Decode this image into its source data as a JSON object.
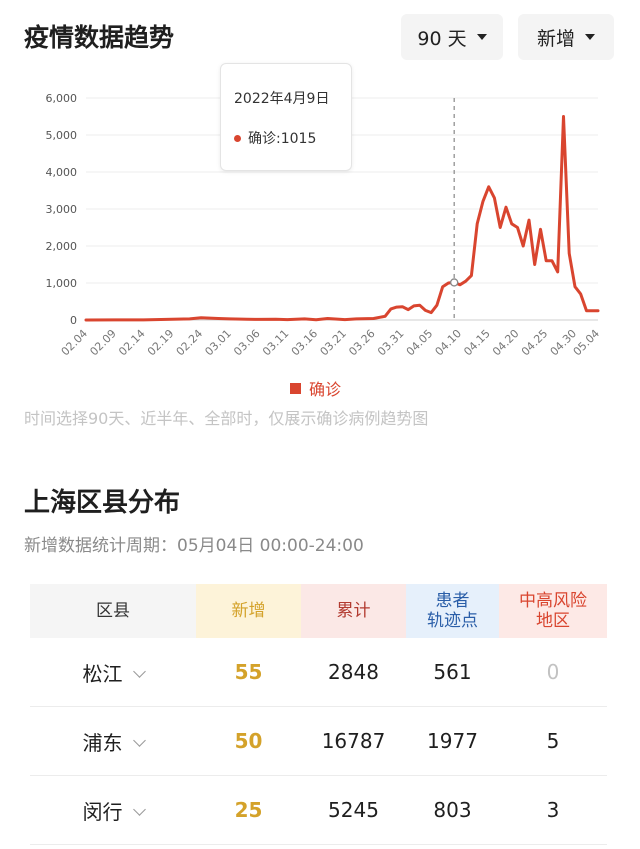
{
  "header": {
    "title": "疫情数据趋势",
    "range_select": "90 天",
    "mode_select": "新增"
  },
  "tooltip": {
    "date": "2022年4月9日",
    "series": "确诊",
    "value": "1015"
  },
  "legend": {
    "label": "确诊"
  },
  "note": "时间选择90天、近半年、全部时，仅展示确诊病例趋势图",
  "colors": {
    "accent": "#d9452f",
    "new": "#d4a22a",
    "total": "#b23a30",
    "track": "#2a5ea8"
  },
  "chart_data": {
    "type": "line",
    "title": "",
    "xlabel": "",
    "ylabel": "",
    "ylim": [
      0,
      6000
    ],
    "yticks": [
      "0",
      "1,000",
      "2,000",
      "3,000",
      "4,000",
      "5,000",
      "6,000"
    ],
    "xticks": [
      "02.04",
      "02.09",
      "02.14",
      "02.19",
      "02.24",
      "03.01",
      "03.06",
      "03.11",
      "03.16",
      "03.21",
      "03.26",
      "03.31",
      "04.05",
      "04.10",
      "04.15",
      "04.20",
      "04.25",
      "04.30",
      "05.04"
    ],
    "grid": true,
    "legend_position": "bottom",
    "highlight": {
      "x": "04.09",
      "y": 1015
    },
    "series": [
      {
        "name": "确诊",
        "points": [
          [
            "02.04",
            0
          ],
          [
            "02.09",
            2
          ],
          [
            "02.14",
            2
          ],
          [
            "02.19",
            20
          ],
          [
            "02.22",
            30
          ],
          [
            "02.24",
            60
          ],
          [
            "02.27",
            40
          ],
          [
            "03.01",
            30
          ],
          [
            "03.04",
            20
          ],
          [
            "03.06",
            15
          ],
          [
            "03.09",
            20
          ],
          [
            "03.11",
            10
          ],
          [
            "03.14",
            30
          ],
          [
            "03.16",
            5
          ],
          [
            "03.18",
            40
          ],
          [
            "03.21",
            10
          ],
          [
            "03.23",
            30
          ],
          [
            "03.26",
            40
          ],
          [
            "03.28",
            100
          ],
          [
            "03.29",
            300
          ],
          [
            "03.30",
            350
          ],
          [
            "03.31",
            360
          ],
          [
            "04.01",
            280
          ],
          [
            "04.02",
            380
          ],
          [
            "04.03",
            400
          ],
          [
            "04.04",
            260
          ],
          [
            "04.05",
            200
          ],
          [
            "04.06",
            400
          ],
          [
            "04.07",
            900
          ],
          [
            "04.08",
            1000
          ],
          [
            "04.09",
            1015
          ],
          [
            "04.10",
            950
          ],
          [
            "04.11",
            1050
          ],
          [
            "04.12",
            1200
          ],
          [
            "04.13",
            2600
          ],
          [
            "04.14",
            3200
          ],
          [
            "04.15",
            3600
          ],
          [
            "04.16",
            3300
          ],
          [
            "04.17",
            2500
          ],
          [
            "04.18",
            3050
          ],
          [
            "04.19",
            2600
          ],
          [
            "04.20",
            2500
          ],
          [
            "04.21",
            2000
          ],
          [
            "04.22",
            2700
          ],
          [
            "04.23",
            1500
          ],
          [
            "04.24",
            2450
          ],
          [
            "04.25",
            1600
          ],
          [
            "04.26",
            1600
          ],
          [
            "04.27",
            1300
          ],
          [
            "04.28",
            5500
          ],
          [
            "04.29",
            1800
          ],
          [
            "04.30",
            900
          ],
          [
            "05.01",
            700
          ],
          [
            "05.02",
            250
          ],
          [
            "05.03",
            250
          ],
          [
            "05.04",
            250
          ]
        ]
      }
    ]
  },
  "districts": {
    "title": "上海区县分布",
    "subtitle": "新增数据统计周期：05月04日 00:00-24:00",
    "headers": {
      "district": "区县",
      "new": "新增",
      "total": "累计",
      "track_line1": "患者",
      "track_line2": "轨迹点",
      "risk_line1": "中高风险",
      "risk_line2": "地区"
    },
    "rows": [
      {
        "name": "松江",
        "new": "55",
        "total": "2848",
        "track": "561",
        "risk": "0"
      },
      {
        "name": "浦东",
        "new": "50",
        "total": "16787",
        "track": "1977",
        "risk": "5"
      },
      {
        "name": "闵行",
        "new": "25",
        "total": "5245",
        "track": "803",
        "risk": "3"
      }
    ]
  }
}
